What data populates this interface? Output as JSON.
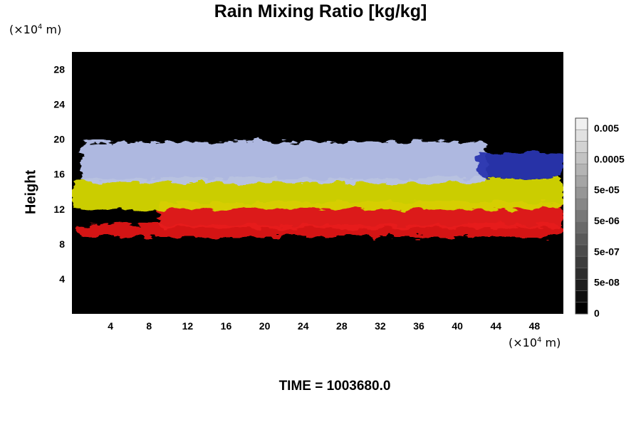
{
  "chart_data": {
    "type": "heatmap",
    "title": "Rain Mixing Ratio [kg/kg]",
    "ylabel": "Height",
    "xlabel": "",
    "y_unit_prefix": "(×10",
    "y_unit_exp": "4",
    "y_unit_suffix": " m)",
    "x_unit_prefix": "(×10",
    "x_unit_exp": "4",
    "x_unit_suffix": " m)",
    "xlim": [
      0,
      51
    ],
    "ylim": [
      0,
      30
    ],
    "xticks": [
      4,
      8,
      12,
      16,
      20,
      24,
      28,
      32,
      36,
      40,
      44,
      48
    ],
    "yticks": [
      4,
      8,
      12,
      16,
      20,
      24,
      28
    ],
    "grid": false,
    "background": "#000000",
    "colorbar": {
      "labels": [
        "0.005",
        "0.0005",
        "5e-05",
        "5e-06",
        "5e-07",
        "5e-08",
        "0"
      ],
      "levels": 17,
      "colors": [
        "#000000",
        "#ffffff"
      ]
    },
    "layers": [
      {
        "name": "red-lower",
        "color": "#e01818",
        "x": [
          0.5,
          51
        ],
        "y": [
          8.8,
          10.2
        ]
      },
      {
        "name": "red-upper",
        "color": "#e81a1a",
        "x": [
          9,
          51
        ],
        "y": [
          9.8,
          12.8
        ]
      },
      {
        "name": "yellow",
        "color": "#d6d800",
        "x": [
          0,
          51
        ],
        "y": [
          12,
          15.5
        ]
      },
      {
        "name": "light-blue",
        "color": "#b8c2ec",
        "x": [
          1,
          43
        ],
        "y": [
          15,
          19.7
        ]
      },
      {
        "name": "deep-blue",
        "color": "#2a36b0",
        "x": [
          42,
          51
        ],
        "y": [
          15.5,
          18.5
        ]
      }
    ],
    "annotation": "TIME = 1003680.0"
  }
}
